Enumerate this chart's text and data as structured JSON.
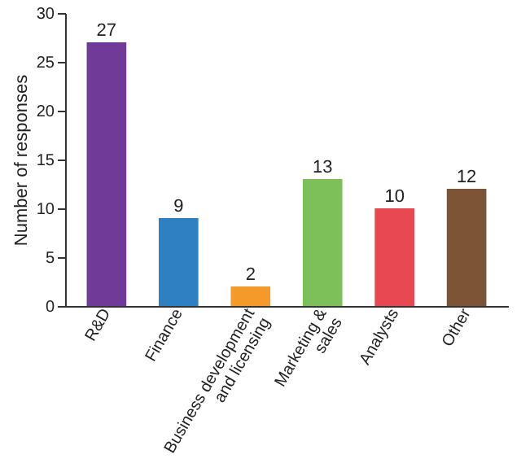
{
  "chart_data": {
    "type": "bar",
    "ylabel": "Number of responses",
    "categories": [
      "R&D",
      "Finance",
      "Business development and licensing",
      "Marketing & sales",
      "Analysts",
      "Other"
    ],
    "values": [
      27,
      9,
      2,
      13,
      10,
      12
    ],
    "colors": [
      "#6f3a98",
      "#2f7fc3",
      "#f39a2b",
      "#7dc05a",
      "#e8484f",
      "#7b5536"
    ],
    "ylim": [
      0,
      30
    ],
    "yticks": [
      0,
      5,
      10,
      15,
      20,
      25,
      30
    ],
    "grid": false,
    "data_labels": true
  }
}
